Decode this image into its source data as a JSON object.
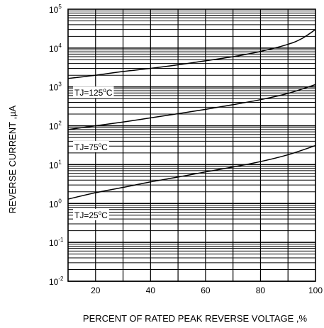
{
  "chart_data": {
    "type": "line",
    "title": "",
    "xlabel": "PERCENT OF RATED PEAK REVERSE VOLTAGE ,%",
    "ylabel": "REVERSE CURRENT ,µA",
    "xlim": [
      10,
      100
    ],
    "ylim": [
      0.01,
      100000
    ],
    "yscale": "log",
    "grid": true,
    "x_ticks": [
      20,
      40,
      60,
      80,
      100
    ],
    "y_tick_labels": [
      {
        "base": "10",
        "exp": "-2",
        "value": 0.01
      },
      {
        "base": "10",
        "exp": "-1",
        "value": 0.1
      },
      {
        "base": "10",
        "exp": "0",
        "value": 1
      },
      {
        "base": "10",
        "exp": "1",
        "value": 10
      },
      {
        "base": "10",
        "exp": "2",
        "value": 100
      },
      {
        "base": "10",
        "exp": "3",
        "value": 1000
      },
      {
        "base": "10",
        "exp": "4",
        "value": 10000
      },
      {
        "base": "10",
        "exp": "5",
        "value": 100000
      }
    ],
    "series": [
      {
        "label_base": "TJ=125",
        "label_sup": "o",
        "label_unit": "C",
        "x": [
          10,
          20,
          30,
          40,
          50,
          60,
          70,
          80,
          90,
          95,
          100
        ],
        "y": [
          1650,
          2000,
          2500,
          3000,
          3700,
          4700,
          6000,
          8200,
          12500,
          17500,
          30000
        ]
      },
      {
        "label_base": "TJ=75",
        "label_sup": "o",
        "label_unit": "C",
        "x": [
          10,
          20,
          30,
          40,
          50,
          60,
          70,
          80,
          90,
          100
        ],
        "y": [
          80,
          100,
          125,
          160,
          205,
          265,
          350,
          470,
          680,
          1150
        ]
      },
      {
        "label_base": "TJ=25",
        "label_sup": "o",
        "label_unit": "C",
        "x": [
          10,
          20,
          30,
          40,
          50,
          60,
          70,
          80,
          90,
          100
        ],
        "y": [
          1.3,
          1.9,
          2.6,
          3.6,
          4.8,
          6.5,
          8.7,
          12,
          18,
          31
        ]
      }
    ]
  }
}
